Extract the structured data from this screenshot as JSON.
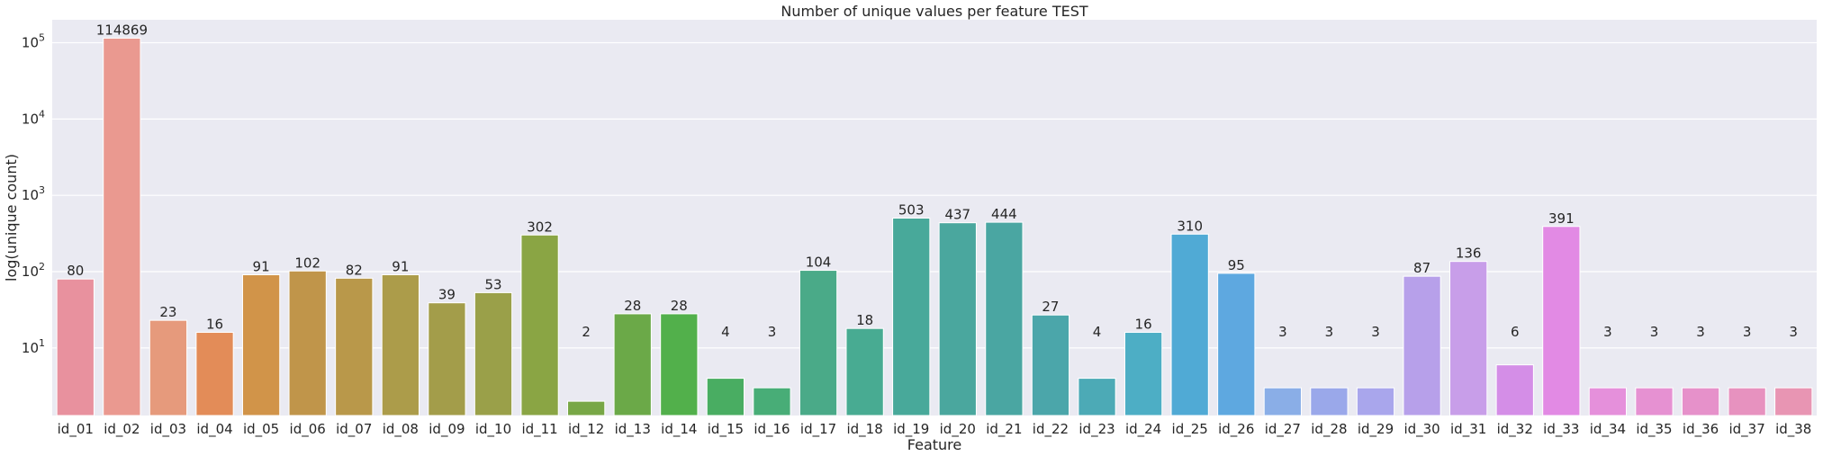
{
  "chart_data": {
    "type": "bar",
    "title": "Number of unique values per feature TEST",
    "xlabel": "Feature",
    "ylabel": "log(unique count)",
    "yscale": "log",
    "ylim": [
      1.3,
      200000
    ],
    "yticks": [
      10,
      100,
      1000,
      10000,
      100000
    ],
    "ytick_labels": [
      "10^1",
      "10^2",
      "10^3",
      "10^4",
      "10^5"
    ],
    "grid": true,
    "background": "#eaeaf2",
    "categories": [
      "id_01",
      "id_02",
      "id_03",
      "id_04",
      "id_05",
      "id_06",
      "id_07",
      "id_08",
      "id_09",
      "id_10",
      "id_11",
      "id_12",
      "id_13",
      "id_14",
      "id_15",
      "id_16",
      "id_17",
      "id_18",
      "id_19",
      "id_20",
      "id_21",
      "id_22",
      "id_23",
      "id_24",
      "id_25",
      "id_26",
      "id_27",
      "id_28",
      "id_29",
      "id_30",
      "id_31",
      "id_32",
      "id_33",
      "id_34",
      "id_35",
      "id_36",
      "id_37",
      "id_38"
    ],
    "values": [
      80,
      114869,
      23,
      16,
      91,
      102,
      82,
      91,
      39,
      53,
      302,
      2,
      28,
      28,
      4,
      3,
      104,
      18,
      503,
      437,
      444,
      27,
      4,
      16,
      310,
      95,
      3,
      3,
      3,
      87,
      136,
      6,
      391,
      3,
      3,
      3,
      3,
      3
    ],
    "colors": [
      "#e8919e",
      "#ea9990",
      "#e69a7c",
      "#e38c58",
      "#d19449",
      "#c0954a",
      "#b9984a",
      "#ac9c4a",
      "#a39d4a",
      "#9aa049",
      "#8aa544",
      "#78a746",
      "#6ba948",
      "#52b04b",
      "#49ad62",
      "#48ad77",
      "#4aaa88",
      "#48ab92",
      "#48a99a",
      "#4aa79e",
      "#4aa6a2",
      "#4ba6aa",
      "#4caab6",
      "#4daec5",
      "#50aad5",
      "#5ea8e0",
      "#8aaee7",
      "#9aa8ea",
      "#a9a6ec",
      "#b7a0ea",
      "#c89ee9",
      "#d48ee7",
      "#e28ae4",
      "#e590db",
      "#e691d2",
      "#e691ca",
      "#e792bf",
      "#e895b3"
    ]
  }
}
